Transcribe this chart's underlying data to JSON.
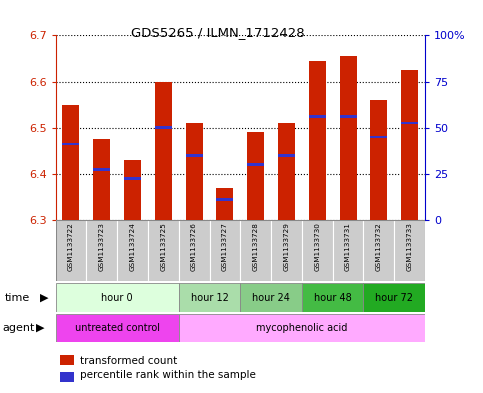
{
  "title": "GDS5265 / ILMN_1712428",
  "samples": [
    "GSM1133722",
    "GSM1133723",
    "GSM1133724",
    "GSM1133725",
    "GSM1133726",
    "GSM1133727",
    "GSM1133728",
    "GSM1133729",
    "GSM1133730",
    "GSM1133731",
    "GSM1133732",
    "GSM1133733"
  ],
  "bar_tops": [
    6.55,
    6.475,
    6.43,
    6.6,
    6.51,
    6.37,
    6.49,
    6.51,
    6.645,
    6.655,
    6.56,
    6.625
  ],
  "percentile_values": [
    6.465,
    6.41,
    6.39,
    6.5,
    6.44,
    6.345,
    6.42,
    6.44,
    6.525,
    6.525,
    6.48,
    6.51
  ],
  "bar_bottom": 6.3,
  "ylim": [
    6.3,
    6.7
  ],
  "yticks_left": [
    6.3,
    6.4,
    6.5,
    6.6,
    6.7
  ],
  "yticks_right": [
    0,
    25,
    50,
    75,
    100
  ],
  "bar_color": "#cc2200",
  "percentile_color": "#3333cc",
  "bar_width": 0.55,
  "time_groups": [
    {
      "label": "hour 0",
      "indices": [
        0,
        1,
        2,
        3
      ],
      "color": "#ddffdd"
    },
    {
      "label": "hour 12",
      "indices": [
        4,
        5
      ],
      "color": "#aaddaa"
    },
    {
      "label": "hour 24",
      "indices": [
        6,
        7
      ],
      "color": "#88cc88"
    },
    {
      "label": "hour 48",
      "indices": [
        8,
        9
      ],
      "color": "#44bb44"
    },
    {
      "label": "hour 72",
      "indices": [
        10,
        11
      ],
      "color": "#22aa22"
    }
  ],
  "agent_groups": [
    {
      "label": "untreated control",
      "indices": [
        0,
        1,
        2,
        3
      ],
      "color": "#ee44ee"
    },
    {
      "label": "mycophenolic acid",
      "indices": [
        4,
        5,
        6,
        7,
        8,
        9,
        10,
        11
      ],
      "color": "#ffaaff"
    }
  ],
  "legend_bar_label": "transformed count",
  "legend_pct_label": "percentile rank within the sample",
  "sample_bg_color": "#cccccc",
  "axis_left_color": "#cc2200",
  "axis_right_color": "#0000cc",
  "border_color": "#888888"
}
